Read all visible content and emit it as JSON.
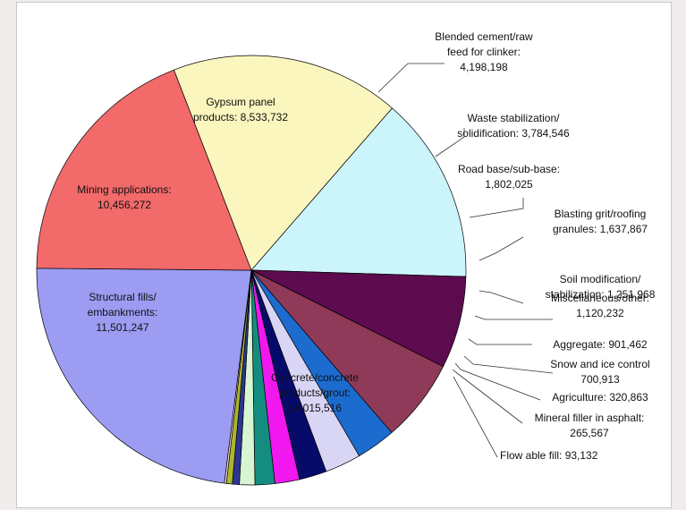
{
  "chart_data": {
    "type": "pie",
    "title": "",
    "slices": [
      {
        "label_lines": [
          "Gypsum panel",
          "products: 8,533,732"
        ],
        "value": 8533732,
        "color": "#ccf5fb"
      },
      {
        "label_lines": [
          "Blended cement/raw",
          "feed for clinker:",
          "4,198,198"
        ],
        "value": 4198198,
        "color": "#5c0b4f"
      },
      {
        "label_lines": [
          "Waste stabilization/",
          "solidification: 3,784,546"
        ],
        "value": 3784546,
        "color": "#8e3a58"
      },
      {
        "label_lines": [
          "Road base/sub-base:",
          "1,802,025"
        ],
        "value": 1802025,
        "color": "#1c6ccf"
      },
      {
        "label_lines": [
          "Blasting grit/roofing",
          "granules: 1,637,867"
        ],
        "value": 1637867,
        "color": "#d9d5f5"
      },
      {
        "label_lines": [
          "Soil modification/",
          "stabilization: 1,251,968"
        ],
        "value": 1251968,
        "color": "#060b6a"
      },
      {
        "label_lines": [
          "Miscellaneous/other:",
          "1,120,232"
        ],
        "value": 1120232,
        "color": "#f118ef"
      },
      {
        "label_lines": [
          "Aggregate: 901,462"
        ],
        "value": 901462,
        "color": "#148d80"
      },
      {
        "label_lines": [
          "Snow and ice control",
          "700,913"
        ],
        "value": 700913,
        "color": "#d7f5d2"
      },
      {
        "label_lines": [
          "Agriculture: 320,863"
        ],
        "value": 320863,
        "color": "#2d3592"
      },
      {
        "label_lines": [
          "Mineral filler in asphalt:",
          "265,567"
        ],
        "value": 265567,
        "color": "#a9b72c"
      },
      {
        "label_lines": [
          "Flow able fill: 93,132"
        ],
        "value": 93132,
        "color": "#f2d2dc"
      },
      {
        "label_lines": [
          "Concrete/concrete",
          "products/grout:",
          "14,015,516"
        ],
        "value": 14015516,
        "color": "#9b9cf2"
      },
      {
        "label_lines": [
          "Structural fills/",
          "embankments:",
          "11,501,247"
        ],
        "value": 11501247,
        "color": "#f26a6a"
      },
      {
        "label_lines": [
          "Mining applications:",
          "10,456,272"
        ],
        "value": 10456272,
        "color": "#fbf6be"
      }
    ]
  }
}
